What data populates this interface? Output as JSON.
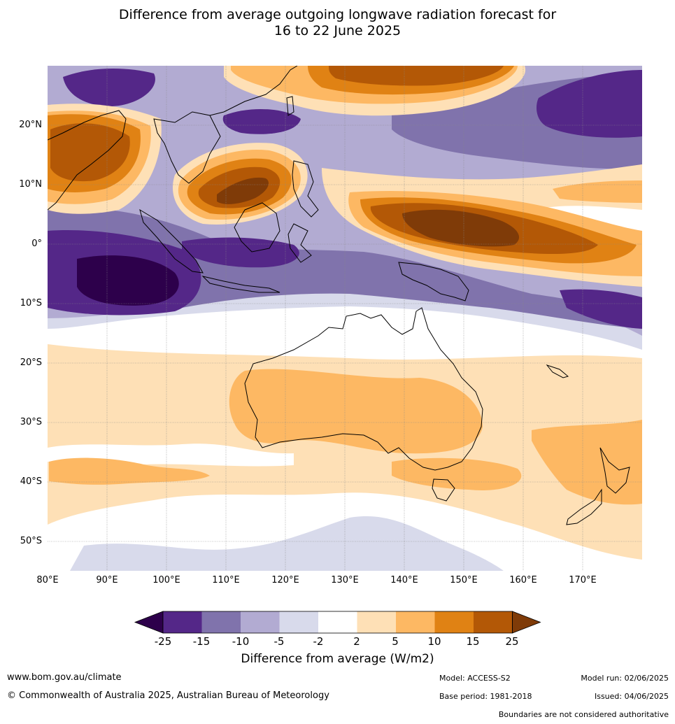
{
  "title_line1": "Difference from average outgoing longwave radiation forecast for",
  "title_line2": "16 to 22 June 2025",
  "lat_labels": [
    "20°N",
    "10°N",
    "0°",
    "10°S",
    "20°S",
    "30°S",
    "40°S",
    "50°S"
  ],
  "lon_labels": [
    "80°E",
    "90°E",
    "100°E",
    "110°E",
    "120°E",
    "130°E",
    "140°E",
    "150°E",
    "160°E",
    "170°E"
  ],
  "map_extent": {
    "lon_min": 80,
    "lon_max": 180,
    "lat_min": -55,
    "lat_max": 30
  },
  "colorbar": {
    "ticks": [
      "-25",
      "-15",
      "-10",
      "-5",
      "-2",
      "2",
      "5",
      "10",
      "15",
      "25"
    ],
    "colors": [
      "#2d004b",
      "#542788",
      "#8073ac",
      "#b2abd2",
      "#d8daeb",
      "#ffffff",
      "#fee0b6",
      "#fdb863",
      "#e08214",
      "#b35806",
      "#7f3b08"
    ],
    "title": "Difference from average (W/m2)"
  },
  "footer": {
    "website": "www.bom.gov.au/climate",
    "copyright": "© Commonwealth of Australia 2025, Australian Bureau of Meteorology",
    "model": "Model: ACCESS-S2",
    "base_period": "Base period: 1981-2018",
    "model_run": "Model run: 02/06/2025",
    "issued": "Issued: 04/06/2025",
    "disclaimer": "Boundaries are not considered authoritative"
  }
}
